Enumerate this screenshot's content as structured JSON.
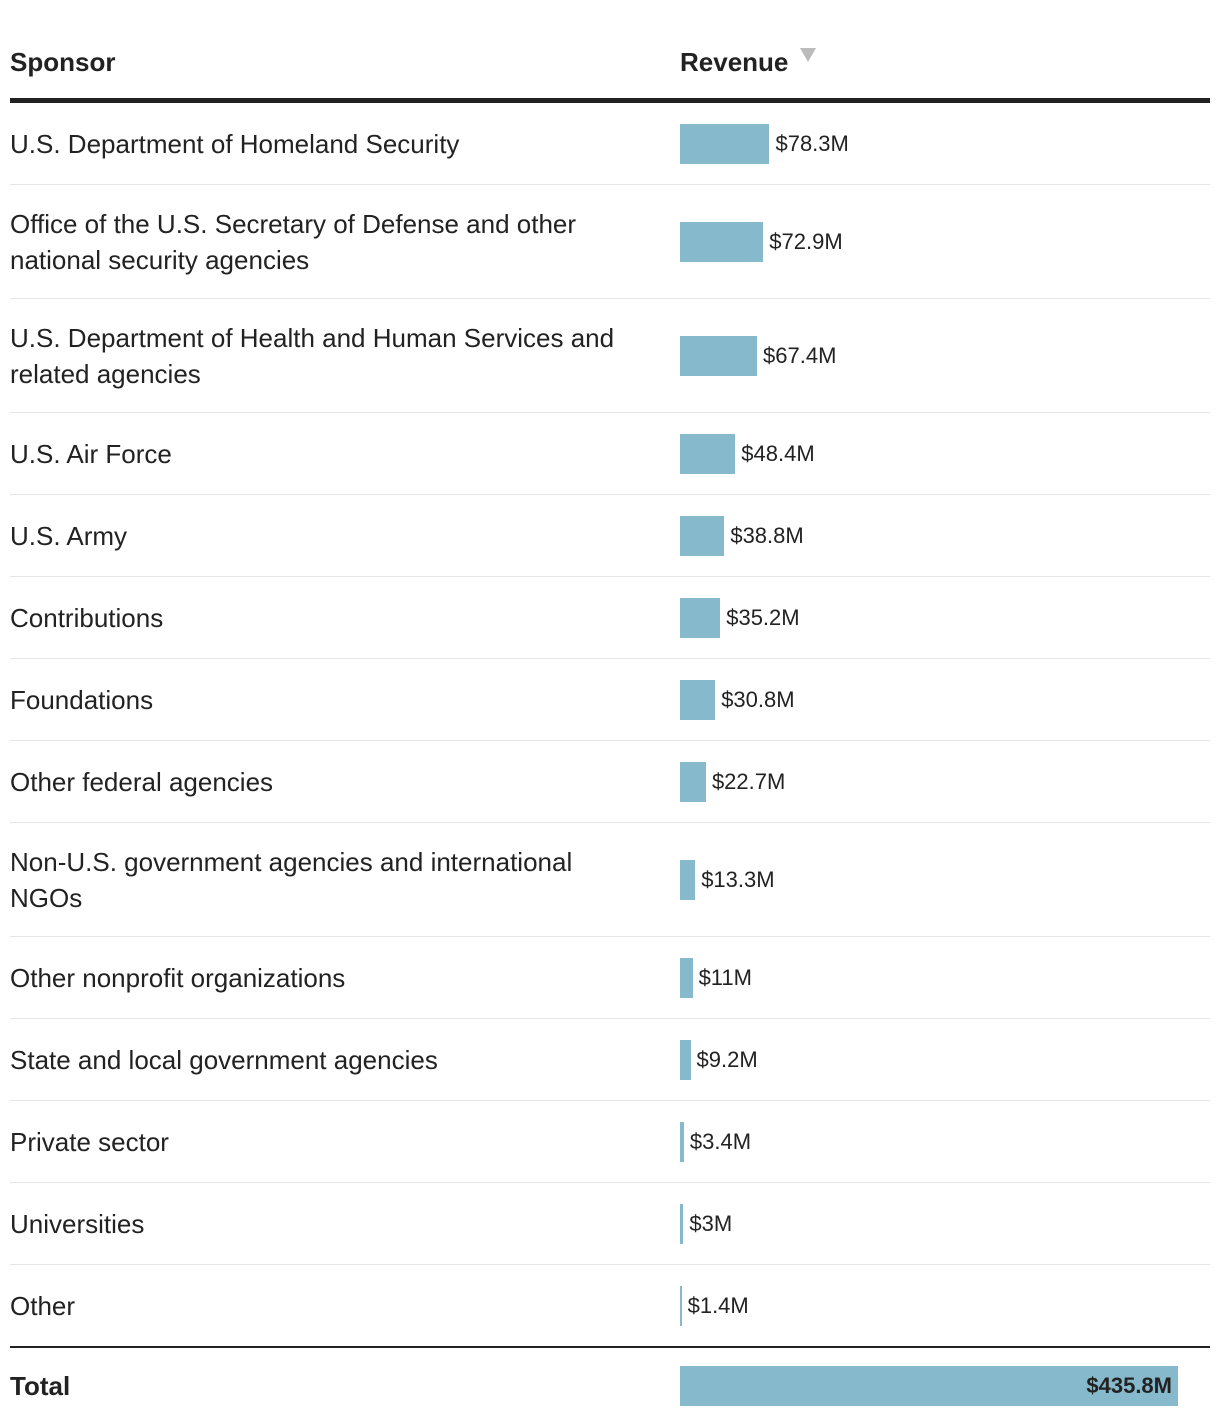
{
  "chart_data": {
    "type": "bar",
    "orientation": "horizontal",
    "columns": [
      "Sponsor",
      "Revenue"
    ],
    "categories": [
      "U.S. Department of Homeland Security",
      "Office of the U.S. Secretary of Defense and other national security agencies",
      "U.S. Department of Health and Human Services and related agencies",
      "U.S. Air Force",
      "U.S. Army",
      "Contributions",
      "Foundations",
      "Other federal agencies",
      "Non-U.S. government agencies and international NGOs",
      "Other nonprofit organizations",
      "State and local government agencies",
      "Private sector",
      "Universities",
      "Other"
    ],
    "values": [
      78.3,
      72.9,
      67.4,
      48.4,
      38.8,
      35.2,
      30.8,
      22.7,
      13.3,
      11,
      9.2,
      3.4,
      3,
      1.4
    ],
    "value_labels": [
      "$78.3M",
      "$72.9M",
      "$67.4M",
      "$48.4M",
      "$38.8M",
      "$35.2M",
      "$30.8M",
      "$22.7M",
      "$13.3M",
      "$11M",
      "$9.2M",
      "$3.4M",
      "$3M",
      "$1.4M"
    ],
    "color": "#86b9cc",
    "total": {
      "label": "Total",
      "value": 435.8,
      "value_label": "$435.8M"
    }
  }
}
